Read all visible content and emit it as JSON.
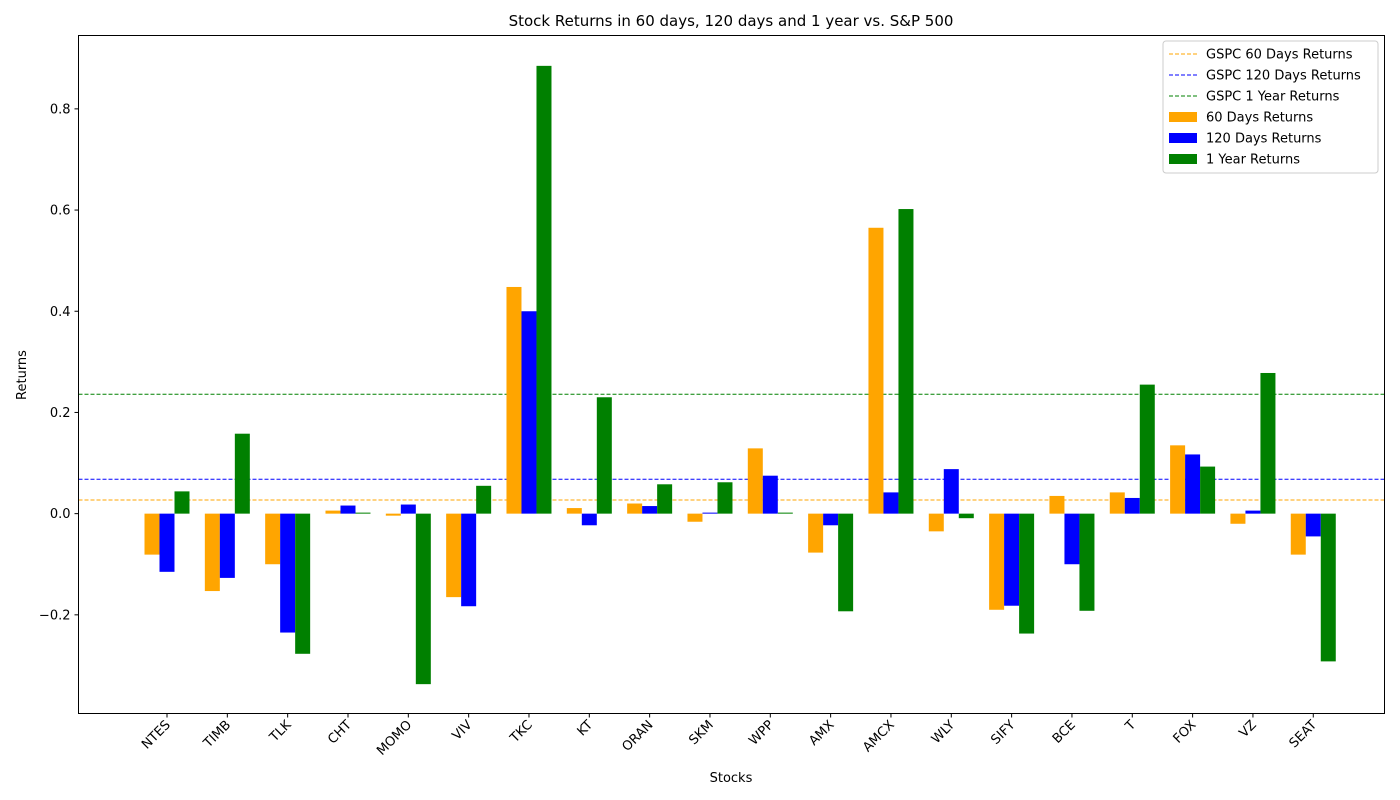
{
  "chart_data": {
    "type": "bar",
    "title": "Stock Returns in 60 days, 120 days and 1 year vs. S&P 500",
    "xlabel": "Stocks",
    "ylabel": "Returns",
    "ylim": [
      -0.395,
      0.945
    ],
    "yticks": [
      -0.2,
      0.0,
      0.2,
      0.4,
      0.6,
      0.8
    ],
    "ytick_labels": [
      "−0.2",
      "0.0",
      "0.2",
      "0.4",
      "0.6",
      "0.8"
    ],
    "grid": false,
    "legend_position": "top-right",
    "categories": [
      "NTES",
      "TIMB",
      "TLK",
      "CHT",
      "MOMO",
      "VIV",
      "TKC",
      "KT",
      "ORAN",
      "SKM",
      "WPP",
      "AMX",
      "AMCX",
      "WLY",
      "SIFY",
      "BCE",
      "T",
      "FOX",
      "VZ",
      "SEAT"
    ],
    "series": [
      {
        "name": "60 Days Returns",
        "color": "#ffa500",
        "values": [
          -0.081,
          -0.153,
          -0.1,
          0.006,
          -0.004,
          -0.165,
          0.448,
          0.011,
          0.02,
          -0.016,
          0.129,
          -0.077,
          0.565,
          -0.035,
          -0.19,
          0.035,
          0.042,
          0.135,
          -0.02,
          -0.081
        ]
      },
      {
        "name": "120 Days Returns",
        "color": "#0000ff",
        "values": [
          -0.115,
          -0.127,
          -0.235,
          0.016,
          0.018,
          -0.183,
          0.4,
          -0.023,
          0.015,
          0.002,
          0.075,
          -0.023,
          0.042,
          0.088,
          -0.182,
          -0.1,
          0.031,
          0.117,
          0.006,
          -0.045
        ]
      },
      {
        "name": "1 Year Returns",
        "color": "#008000",
        "values": [
          0.044,
          0.158,
          -0.277,
          0.002,
          -0.337,
          0.055,
          0.885,
          0.23,
          0.058,
          0.062,
          0.002,
          -0.193,
          0.602,
          -0.009,
          -0.237,
          -0.192,
          0.255,
          0.093,
          0.278,
          -0.292
        ]
      }
    ],
    "reference_lines": [
      {
        "name": "GSPC 60 Days Returns",
        "color": "#ffa500",
        "value": 0.027
      },
      {
        "name": "GSPC 120 Days Returns",
        "color": "#0000ff",
        "value": 0.068
      },
      {
        "name": "GSPC 1 Year Returns",
        "color": "#008000",
        "value": 0.236
      }
    ]
  }
}
